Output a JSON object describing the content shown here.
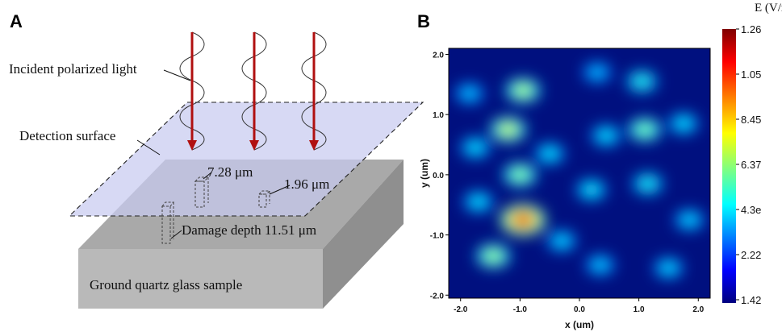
{
  "panel_a": {
    "letter": "A",
    "labels": {
      "incident": "Incident polarized light",
      "detection": "Detection surface",
      "size1": "7.28 μm",
      "size2": "1.96 μm",
      "damage": "Damage depth 11.51 μm",
      "sample": "Ground quartz glass sample"
    },
    "colors": {
      "arrow": "#b01010",
      "plane": "#c9cdf0",
      "block_top": "#a9a9a9",
      "block_front": "#b9b9b9",
      "block_side": "#8f8f8f"
    }
  },
  "panel_b": {
    "letter": "B",
    "colorbar": {
      "title": "E (V/m)",
      "ticks": [
        "1.26",
        "1.05",
        "8.45",
        "6.37",
        "4.3e",
        "2.22",
        "1.42"
      ],
      "colormap": "jet"
    },
    "axes": {
      "xlabel": "x (um)",
      "ylabel": "y (um)",
      "x_ticks": [
        "-2.0",
        "-1.0",
        "0.0",
        "1.0",
        "2.0"
      ],
      "y_ticks": [
        "2.0",
        "1.0",
        "0.0",
        "-1.0",
        "-2.0"
      ],
      "xlim": [
        -2.2,
        2.2
      ],
      "ylim": [
        -2.05,
        2.1
      ]
    }
  },
  "chart_data": {
    "type": "heatmap",
    "title": "",
    "xlabel": "x (um)",
    "ylabel": "y (um)",
    "xlim": [
      -2.2,
      2.2
    ],
    "ylim": [
      -2.05,
      2.1
    ],
    "colorbar_label": "E (V/m)",
    "colorbar_ticks": [
      "1.26",
      "1.05",
      "8.45",
      "6.37",
      "4.3e",
      "2.22",
      "1.42"
    ],
    "hotspots": [
      {
        "x": -0.95,
        "y": -0.75,
        "intensity": 1.0
      },
      {
        "x": -0.95,
        "y": 1.4,
        "intensity": 0.55
      },
      {
        "x": -1.2,
        "y": 0.75,
        "intensity": 0.6
      },
      {
        "x": -1.0,
        "y": 0.0,
        "intensity": 0.5
      },
      {
        "x": -1.45,
        "y": -1.35,
        "intensity": 0.52
      },
      {
        "x": 1.1,
        "y": 0.75,
        "intensity": 0.48
      },
      {
        "x": 1.05,
        "y": 1.55,
        "intensity": 0.36
      },
      {
        "x": 1.15,
        "y": -0.15,
        "intensity": 0.34
      },
      {
        "x": 0.45,
        "y": 0.65,
        "intensity": 0.3
      },
      {
        "x": 0.2,
        "y": -0.25,
        "intensity": 0.32
      },
      {
        "x": -0.5,
        "y": 0.35,
        "intensity": 0.3
      },
      {
        "x": -1.75,
        "y": 0.45,
        "intensity": 0.3
      },
      {
        "x": -1.7,
        "y": -0.45,
        "intensity": 0.3
      },
      {
        "x": 1.75,
        "y": 0.85,
        "intensity": 0.3
      },
      {
        "x": 1.85,
        "y": -0.75,
        "intensity": 0.28
      },
      {
        "x": 1.5,
        "y": -1.55,
        "intensity": 0.28
      },
      {
        "x": 0.35,
        "y": -1.5,
        "intensity": 0.26
      },
      {
        "x": -0.3,
        "y": -1.1,
        "intensity": 0.28
      },
      {
        "x": 0.3,
        "y": 1.7,
        "intensity": 0.24
      },
      {
        "x": -1.85,
        "y": 1.35,
        "intensity": 0.25
      }
    ]
  }
}
